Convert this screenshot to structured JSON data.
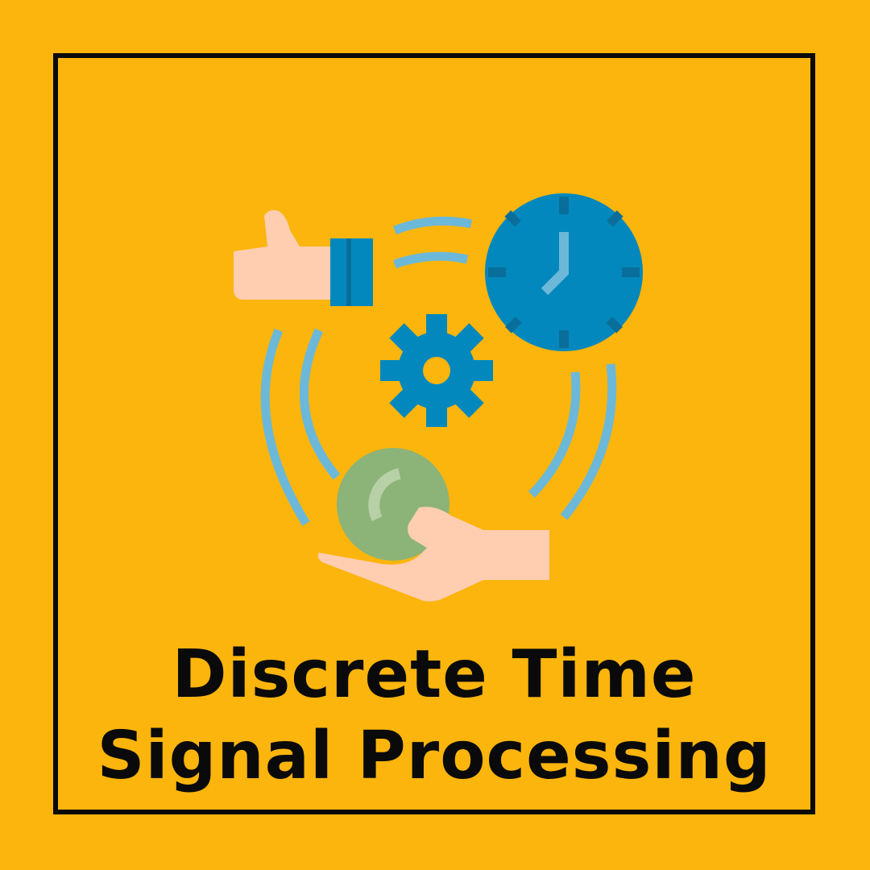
{
  "title": {
    "line1": "Discrete Time",
    "line2": "Signal Processing"
  },
  "colors": {
    "background": "#FBB50C",
    "frame": "#0A0A0A",
    "skin": "#FFCDB0",
    "blue_dark": "#0388BD",
    "blue_light": "#6CB8D9",
    "green_ball": "#8CB378",
    "text": "#0A0A0A"
  },
  "icons": {
    "thumbs_up_hand": "thumbs-up-hand-icon",
    "clock": "clock-icon",
    "gear": "gear-icon",
    "ball": "ball-icon",
    "open_hand": "open-hand-icon",
    "motion_arcs": "motion-arcs-icon"
  }
}
